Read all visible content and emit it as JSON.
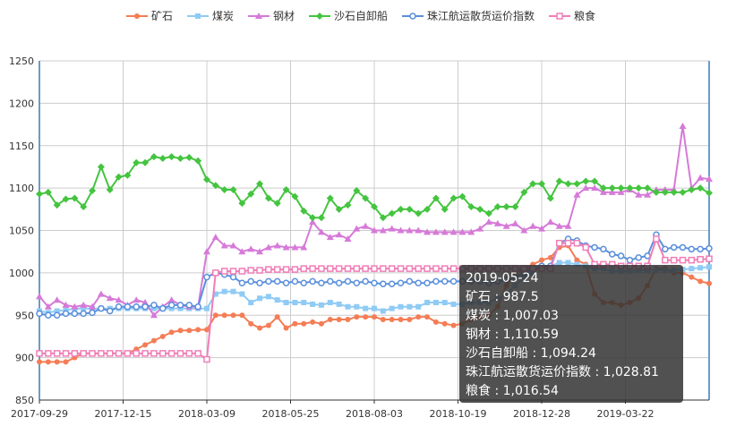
{
  "chart_data": {
    "type": "line",
    "title": "",
    "xlabel": "",
    "ylabel": "",
    "ylim": [
      850,
      1250
    ],
    "yticks": [
      850,
      900,
      950,
      1000,
      1050,
      1100,
      1150,
      1200,
      1250
    ],
    "grid": true,
    "legend_position": "top-center",
    "x_tick_labels": [
      "2017-09-29",
      "2017-12-15",
      "2018-03-09",
      "2018-05-25",
      "2018-08-03",
      "2018-10-19",
      "2018-12-28",
      "2019-03-22"
    ],
    "series": [
      {
        "name": "矿石",
        "color": "#f47d55",
        "marker": "circle",
        "values": [
          895,
          895,
          895,
          895,
          900,
          905,
          905,
          905,
          905,
          905,
          905,
          910,
          915,
          920,
          925,
          930,
          932,
          932,
          933,
          933,
          950,
          950,
          950,
          950,
          940,
          935,
          938,
          948,
          935,
          940,
          940,
          942,
          940,
          945,
          945,
          945,
          948,
          948,
          948,
          945,
          945,
          945,
          945,
          948,
          948,
          942,
          940,
          938,
          940,
          945,
          948,
          950,
          960,
          985,
          1000,
          1005,
          1010,
          1015,
          1018,
          1030,
          1032,
          1015,
          1010,
          975,
          965,
          965,
          962,
          965,
          970,
          985,
          1005,
          1005,
          1000,
          1000,
          995,
          990,
          987.5
        ]
      },
      {
        "name": "煤炭",
        "color": "#8fcbf5",
        "marker": "square",
        "values": [
          955,
          953,
          955,
          956,
          958,
          958,
          958,
          958,
          958,
          958,
          958,
          958,
          958,
          958,
          958,
          958,
          958,
          958,
          958,
          958,
          975,
          978,
          978,
          975,
          965,
          970,
          972,
          968,
          965,
          965,
          965,
          963,
          962,
          965,
          963,
          960,
          960,
          958,
          958,
          955,
          958,
          960,
          960,
          960,
          965,
          965,
          965,
          963,
          963,
          965,
          965,
          965,
          970,
          975,
          985,
          995,
          1000,
          1008,
          1008,
          1012,
          1012,
          1010,
          1008,
          1005,
          1005,
          1002,
          1002,
          1002,
          1003,
          1003,
          1003,
          1003,
          1003,
          1004,
          1005,
          1006,
          1007.03
        ]
      },
      {
        "name": "钢材",
        "color": "#d67ad8",
        "marker": "triangle",
        "values": [
          972,
          960,
          968,
          962,
          960,
          962,
          960,
          975,
          970,
          968,
          962,
          968,
          965,
          950,
          960,
          968,
          962,
          960,
          960,
          1025,
          1042,
          1032,
          1032,
          1025,
          1028,
          1025,
          1030,
          1032,
          1030,
          1030,
          1030,
          1060,
          1048,
          1042,
          1045,
          1040,
          1052,
          1055,
          1050,
          1050,
          1052,
          1050,
          1050,
          1050,
          1048,
          1048,
          1048,
          1048,
          1048,
          1048,
          1052,
          1060,
          1058,
          1055,
          1058,
          1050,
          1055,
          1052,
          1060,
          1055,
          1055,
          1092,
          1100,
          1100,
          1095,
          1095,
          1095,
          1098,
          1092,
          1092,
          1098,
          1098,
          1098,
          1173,
          1100,
          1112,
          1110.59
        ]
      },
      {
        "name": "沙石自卸船",
        "color": "#44c43f",
        "marker": "diamond",
        "values": [
          1093,
          1095,
          1080,
          1087,
          1088,
          1078,
          1097,
          1125,
          1098,
          1113,
          1115,
          1130,
          1130,
          1137,
          1135,
          1137,
          1135,
          1136,
          1132,
          1110,
          1103,
          1098,
          1098,
          1082,
          1093,
          1105,
          1088,
          1082,
          1098,
          1090,
          1073,
          1065,
          1065,
          1088,
          1075,
          1080,
          1097,
          1088,
          1078,
          1065,
          1070,
          1075,
          1075,
          1070,
          1075,
          1088,
          1075,
          1088,
          1090,
          1078,
          1075,
          1070,
          1078,
          1078,
          1078,
          1095,
          1105,
          1105,
          1088,
          1108,
          1105,
          1105,
          1108,
          1108,
          1100,
          1100,
          1100,
          1100,
          1100,
          1100,
          1095,
          1095,
          1095,
          1095,
          1098,
          1100,
          1094.24
        ]
      },
      {
        "name": "珠江航运散货运价指数",
        "color": "#5a8fdc",
        "marker": "hollow-circle",
        "values": [
          952,
          950,
          950,
          952,
          952,
          952,
          953,
          958,
          955,
          960,
          960,
          960,
          960,
          962,
          958,
          962,
          962,
          962,
          960,
          995,
          1000,
          998,
          995,
          988,
          990,
          988,
          990,
          990,
          988,
          990,
          988,
          990,
          988,
          990,
          988,
          990,
          988,
          990,
          988,
          987,
          987,
          988,
          990,
          988,
          988,
          990,
          990,
          990,
          990,
          990,
          990,
          988,
          990,
          992,
          995,
          1000,
          1005,
          1008,
          1008,
          1035,
          1040,
          1038,
          1032,
          1030,
          1028,
          1022,
          1020,
          1015,
          1018,
          1020,
          1045,
          1028,
          1030,
          1030,
          1028,
          1028,
          1028.81
        ]
      },
      {
        "name": "粮食",
        "color": "#f07eb8",
        "marker": "hollow-square",
        "values": [
          905,
          905,
          905,
          905,
          905,
          905,
          905,
          905,
          905,
          905,
          905,
          905,
          905,
          905,
          905,
          905,
          905,
          905,
          905,
          898,
          1000,
          1002,
          1002,
          1002,
          1003,
          1003,
          1004,
          1004,
          1004,
          1004,
          1005,
          1005,
          1005,
          1005,
          1005,
          1005,
          1005,
          1005,
          1005,
          1005,
          1005,
          1005,
          1005,
          1005,
          1005,
          1005,
          1005,
          1005,
          1005,
          1005,
          1005,
          1005,
          1005,
          1005,
          1005,
          1005,
          1005,
          1005,
          1005,
          1035,
          1035,
          1035,
          1030,
          1010,
          1010,
          1010,
          1008,
          1008,
          1008,
          1008,
          1040,
          1015,
          1015,
          1015,
          1015,
          1016,
          1016.54
        ]
      }
    ]
  },
  "tooltip": {
    "date": "2019-05-24",
    "lines": [
      "矿石 : 987.5",
      "煤炭 : 1,007.03",
      "钢材 : 1,110.59",
      "沙石自卸船 : 1,094.24",
      "珠江航运散货运价指数 : 1,028.81",
      "粮食 : 1,016.54"
    ]
  }
}
